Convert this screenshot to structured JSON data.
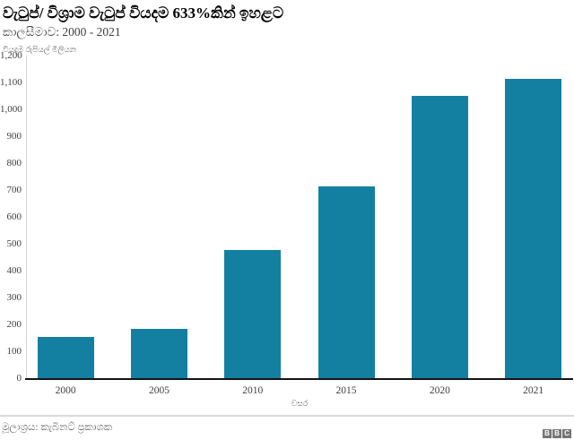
{
  "header": {
    "title": "වැටුප්/ විශ්‍රාම වැටුප් වියදම 633%කින් ඉහළට",
    "subtitle": "කාලසීමාව: 2000 - 2021"
  },
  "chart_data": {
    "type": "bar",
    "categories": [
      "2000",
      "2005",
      "2010",
      "2015",
      "2020",
      "2021"
    ],
    "values": [
      152,
      185,
      478,
      715,
      1050,
      1115
    ],
    "title": "වැටුප්/ විශ්‍රාම වැටුප් වියදම 633%කින් ඉහළට",
    "subtitle": "කාලසීමාව: 2000 - 2021",
    "xlabel": "වසර",
    "ylabel": "වියදම රුපියල් මිලියන",
    "ylim": [
      0,
      1200
    ],
    "ytick_step": 100,
    "yticks": [
      "0",
      "100",
      "200",
      "300",
      "400",
      "500",
      "600",
      "700",
      "800",
      "900",
      "1,000",
      "1,100",
      "1,200"
    ],
    "grid": "off",
    "legend": "none",
    "bar_color": "#1380A1"
  },
  "footer": {
    "source": "මූලාශ්‍රය: කැබිනට් ප්‍රකාශක",
    "logo_letters": [
      "B",
      "B",
      "C"
    ]
  },
  "colors": {
    "bar": "#1380A1",
    "axis_line": "#141414",
    "y_axis_line": "#d5d5d5",
    "tick_text": "#404040",
    "muted_text": "#68686d",
    "divider": "#d9d9d9",
    "logo_block": "#757575"
  }
}
